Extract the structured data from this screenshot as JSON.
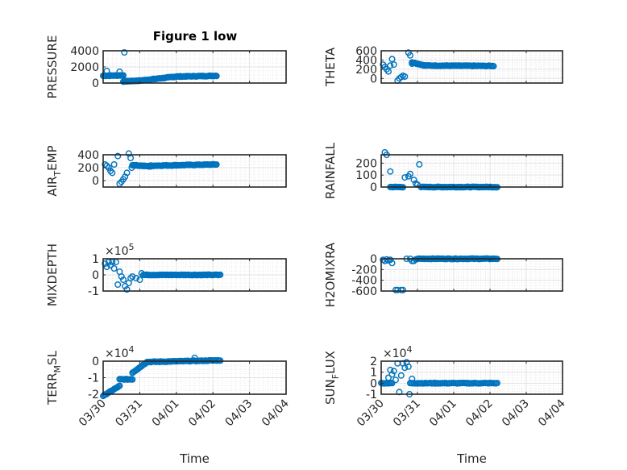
{
  "figure": {
    "title": "Figure 1 low",
    "marker_color": "#0072BD"
  },
  "chart_data": [
    {
      "type": "scatter",
      "title": "Figure 1 low",
      "ylabel": "PRESSURE",
      "xlabel": "",
      "ylim": [
        0,
        4000
      ],
      "yticks": [
        0,
        2000,
        4000
      ],
      "ytick_labels": [
        "0",
        "2000",
        "4000"
      ],
      "exponent": "",
      "xlim_days": [
        0,
        5
      ],
      "xtick_labels": [],
      "grid": true,
      "segments": [
        {
          "t0": 0.0,
          "t1": 0.55,
          "v0": 900,
          "v1": 950,
          "n": 20
        },
        {
          "t0": 0.55,
          "t1": 1.0,
          "v0": 200,
          "v1": 300,
          "n": 25
        },
        {
          "t0": 1.0,
          "t1": 2.0,
          "v0": 300,
          "v1": 800,
          "n": 40
        },
        {
          "t0": 2.0,
          "t1": 3.1,
          "v0": 800,
          "v1": 900,
          "n": 40
        }
      ],
      "outliers": [
        {
          "t": 0.1,
          "v": 1500
        },
        {
          "t": 0.45,
          "v": 1400
        },
        {
          "t": 0.58,
          "v": 3800
        },
        {
          "t": 0.05,
          "v": 900
        }
      ]
    },
    {
      "type": "scatter",
      "title": "",
      "ylabel": "THETA",
      "xlabel": "",
      "ylim": [
        -100,
        600
      ],
      "yticks": [
        0,
        200,
        400,
        600
      ],
      "ytick_labels": [
        "0",
        "200",
        "400",
        "600"
      ],
      "exponent": "",
      "xlim_days": [
        0,
        5
      ],
      "xtick_labels": [],
      "grid": true,
      "segments": [
        {
          "t0": 0.85,
          "t1": 1.2,
          "v0": 350,
          "v1": 280,
          "n": 15
        },
        {
          "t0": 1.2,
          "t1": 3.1,
          "v0": 280,
          "v1": 270,
          "n": 60
        }
      ],
      "outliers": [
        {
          "t": 0.05,
          "v": 300
        },
        {
          "t": 0.1,
          "v": 250
        },
        {
          "t": 0.15,
          "v": 200
        },
        {
          "t": 0.2,
          "v": 150
        },
        {
          "t": 0.25,
          "v": 280
        },
        {
          "t": 0.3,
          "v": 420
        },
        {
          "t": 0.35,
          "v": 300
        },
        {
          "t": 0.45,
          "v": -50
        },
        {
          "t": 0.5,
          "v": 0
        },
        {
          "t": 0.55,
          "v": 30
        },
        {
          "t": 0.6,
          "v": 60
        },
        {
          "t": 0.65,
          "v": 40
        },
        {
          "t": 0.75,
          "v": 560
        },
        {
          "t": 0.8,
          "v": 500
        },
        {
          "t": 0.85,
          "v": 320
        }
      ]
    },
    {
      "type": "scatter",
      "title": "",
      "ylabel": "AIR_TEMP",
      "xlabel": "",
      "ylim": [
        -100,
        400
      ],
      "yticks": [
        0,
        200,
        400
      ],
      "ytick_labels": [
        "0",
        "200",
        "400"
      ],
      "exponent": "",
      "xlim_days": [
        0,
        5
      ],
      "xtick_labels": [],
      "grid": true,
      "segments": [
        {
          "t0": 0.8,
          "t1": 1.3,
          "v0": 240,
          "v1": 220,
          "n": 20
        },
        {
          "t0": 1.3,
          "t1": 3.1,
          "v0": 230,
          "v1": 250,
          "n": 60
        }
      ],
      "outliers": [
        {
          "t": 0.05,
          "v": 250
        },
        {
          "t": 0.1,
          "v": 230
        },
        {
          "t": 0.15,
          "v": 200
        },
        {
          "t": 0.2,
          "v": 150
        },
        {
          "t": 0.25,
          "v": 120
        },
        {
          "t": 0.3,
          "v": 250
        },
        {
          "t": 0.4,
          "v": 380
        },
        {
          "t": 0.45,
          "v": -50
        },
        {
          "t": 0.5,
          "v": -20
        },
        {
          "t": 0.55,
          "v": 20
        },
        {
          "t": 0.6,
          "v": 60
        },
        {
          "t": 0.65,
          "v": 120
        },
        {
          "t": 0.7,
          "v": 420
        },
        {
          "t": 0.75,
          "v": 350
        },
        {
          "t": 0.78,
          "v": 200
        }
      ]
    },
    {
      "type": "scatter",
      "title": "",
      "ylabel": "RAINFALL",
      "xlabel": "",
      "ylim": [
        0,
        270
      ],
      "yticks": [
        0,
        100,
        200
      ],
      "ytick_labels": [
        "0",
        "100",
        "200"
      ],
      "exponent": "",
      "xlim_days": [
        0,
        5
      ],
      "xtick_labels": [],
      "grid": true,
      "segments": [
        {
          "t0": 0.25,
          "t1": 0.6,
          "v0": 0,
          "v1": 0,
          "n": 12
        },
        {
          "t0": 1.1,
          "t1": 3.2,
          "v0": 0,
          "v1": 0,
          "n": 70
        }
      ],
      "outliers": [
        {
          "t": 0.1,
          "v": 290
        },
        {
          "t": 0.15,
          "v": 270
        },
        {
          "t": 0.25,
          "v": 130
        },
        {
          "t": 0.65,
          "v": 80
        },
        {
          "t": 0.75,
          "v": 90
        },
        {
          "t": 0.8,
          "v": 110
        },
        {
          "t": 0.9,
          "v": 60
        },
        {
          "t": 0.95,
          "v": 30
        },
        {
          "t": 1.0,
          "v": 20
        },
        {
          "t": 1.05,
          "v": 190
        }
      ]
    },
    {
      "type": "scatter",
      "title": "",
      "ylabel": "MIXDEPTH",
      "xlabel": "",
      "ylim": [
        -1,
        1
      ],
      "yticks": [
        -1,
        0,
        1
      ],
      "ytick_labels": [
        "-1",
        "0",
        "1"
      ],
      "exponent": "×10^5",
      "exponent_base": "×10",
      "exponent_power": "5",
      "xlim_days": [
        0,
        5
      ],
      "xtick_labels": [],
      "grid": true,
      "segments": [
        {
          "t0": 1.1,
          "t1": 3.2,
          "v0": 0,
          "v1": 0,
          "n": 70
        }
      ],
      "outliers": [
        {
          "t": 0.05,
          "v": 0.7
        },
        {
          "t": 0.1,
          "v": 0.5
        },
        {
          "t": 0.15,
          "v": 0.8
        },
        {
          "t": 0.2,
          "v": 0.6
        },
        {
          "t": 0.25,
          "v": 0.8
        },
        {
          "t": 0.3,
          "v": 0.4
        },
        {
          "t": 0.35,
          "v": 0.8
        },
        {
          "t": 0.4,
          "v": -0.6
        },
        {
          "t": 0.45,
          "v": 0.2
        },
        {
          "t": 0.5,
          "v": -0.1
        },
        {
          "t": 0.55,
          "v": -0.3
        },
        {
          "t": 0.6,
          "v": -0.7
        },
        {
          "t": 0.65,
          "v": -0.9
        },
        {
          "t": 0.7,
          "v": -0.5
        },
        {
          "t": 0.75,
          "v": -0.2
        },
        {
          "t": 0.8,
          "v": -0.1
        },
        {
          "t": 0.9,
          "v": -0.2
        },
        {
          "t": 1.0,
          "v": -0.3
        },
        {
          "t": 1.05,
          "v": 0.1
        }
      ]
    },
    {
      "type": "scatter",
      "title": "",
      "ylabel": "H2OMIXRA",
      "xlabel": "",
      "ylim": [
        -600,
        0
      ],
      "yticks": [
        -600,
        -400,
        -200,
        0
      ],
      "ytick_labels": [
        "-600",
        "-400",
        "-200",
        "0"
      ],
      "exponent": "",
      "xlim_days": [
        0,
        5
      ],
      "xtick_labels": [],
      "grid": true,
      "segments": [
        {
          "t0": 1.0,
          "t1": 3.2,
          "v0": 0,
          "v1": 0,
          "n": 70
        }
      ],
      "outliers": [
        {
          "t": 0.05,
          "v": -20
        },
        {
          "t": 0.1,
          "v": -40
        },
        {
          "t": 0.15,
          "v": -10
        },
        {
          "t": 0.2,
          "v": -30
        },
        {
          "t": 0.25,
          "v": -20
        },
        {
          "t": 0.3,
          "v": -80
        },
        {
          "t": 0.4,
          "v": -580
        },
        {
          "t": 0.45,
          "v": -580
        },
        {
          "t": 0.55,
          "v": -580
        },
        {
          "t": 0.6,
          "v": -580
        },
        {
          "t": 0.7,
          "v": 0
        },
        {
          "t": 0.8,
          "v": 0
        },
        {
          "t": 0.85,
          "v": -40
        },
        {
          "t": 0.9,
          "v": -40
        },
        {
          "t": 0.95,
          "v": -10
        }
      ]
    },
    {
      "type": "scatter",
      "title": "",
      "ylabel": "TERR_MSL",
      "xlabel": "Time",
      "ylim": [
        -2,
        0
      ],
      "yticks": [
        -2,
        -1,
        0
      ],
      "ytick_labels": [
        "-2",
        "-1",
        "0"
      ],
      "exponent": "×10^4",
      "exponent_base": "×10",
      "exponent_power": "4",
      "xlim_days": [
        0,
        5
      ],
      "xtick_labels": [
        "03/30",
        "03/31",
        "04/01",
        "04/02",
        "04/03",
        "04/04"
      ],
      "grid": true,
      "segments": [
        {
          "t0": 0.0,
          "t1": 0.45,
          "v0": -2.1,
          "v1": -1.5,
          "n": 18
        },
        {
          "t0": 0.45,
          "t1": 0.8,
          "v0": -1.1,
          "v1": -1.1,
          "n": 12
        },
        {
          "t0": 0.8,
          "t1": 1.2,
          "v0": -0.7,
          "v1": -0.05,
          "n": 15
        },
        {
          "t0": 1.2,
          "t1": 3.2,
          "v0": -0.05,
          "v1": 0.05,
          "n": 60
        }
      ],
      "outliers": [
        {
          "t": 2.5,
          "v": 0.2
        }
      ]
    },
    {
      "type": "scatter",
      "title": "",
      "ylabel": "SUN_FLUX",
      "xlabel": "Time",
      "ylim": [
        -1,
        2
      ],
      "yticks": [
        -1,
        0,
        1,
        2
      ],
      "ytick_labels": [
        "-1",
        "0",
        "1",
        "2"
      ],
      "exponent": "×10^4",
      "exponent_base": "×10",
      "exponent_power": "4",
      "xlim_days": [
        0,
        5
      ],
      "xtick_labels": [
        "03/30",
        "03/31",
        "04/01",
        "04/02",
        "04/03",
        "04/04"
      ],
      "grid": true,
      "segments": [
        {
          "t0": 0.0,
          "t1": 0.3,
          "v0": 0.0,
          "v1": 0.0,
          "n": 10
        },
        {
          "t0": 0.8,
          "t1": 3.2,
          "v0": 0.0,
          "v1": 0.0,
          "n": 70
        }
      ],
      "outliers": [
        {
          "t": 0.2,
          "v": 0.5
        },
        {
          "t": 0.25,
          "v": 1.2
        },
        {
          "t": 0.3,
          "v": 0.8
        },
        {
          "t": 0.35,
          "v": 1.1
        },
        {
          "t": 0.4,
          "v": 0.3
        },
        {
          "t": 0.45,
          "v": 1.8
        },
        {
          "t": 0.5,
          "v": -0.8
        },
        {
          "t": 0.55,
          "v": 0.7
        },
        {
          "t": 0.6,
          "v": 1.8
        },
        {
          "t": 0.65,
          "v": 1.4
        },
        {
          "t": 0.7,
          "v": 1.9
        },
        {
          "t": 0.75,
          "v": 1.5
        },
        {
          "t": 0.78,
          "v": -1.0
        },
        {
          "t": 0.85,
          "v": 0.4
        }
      ]
    }
  ]
}
